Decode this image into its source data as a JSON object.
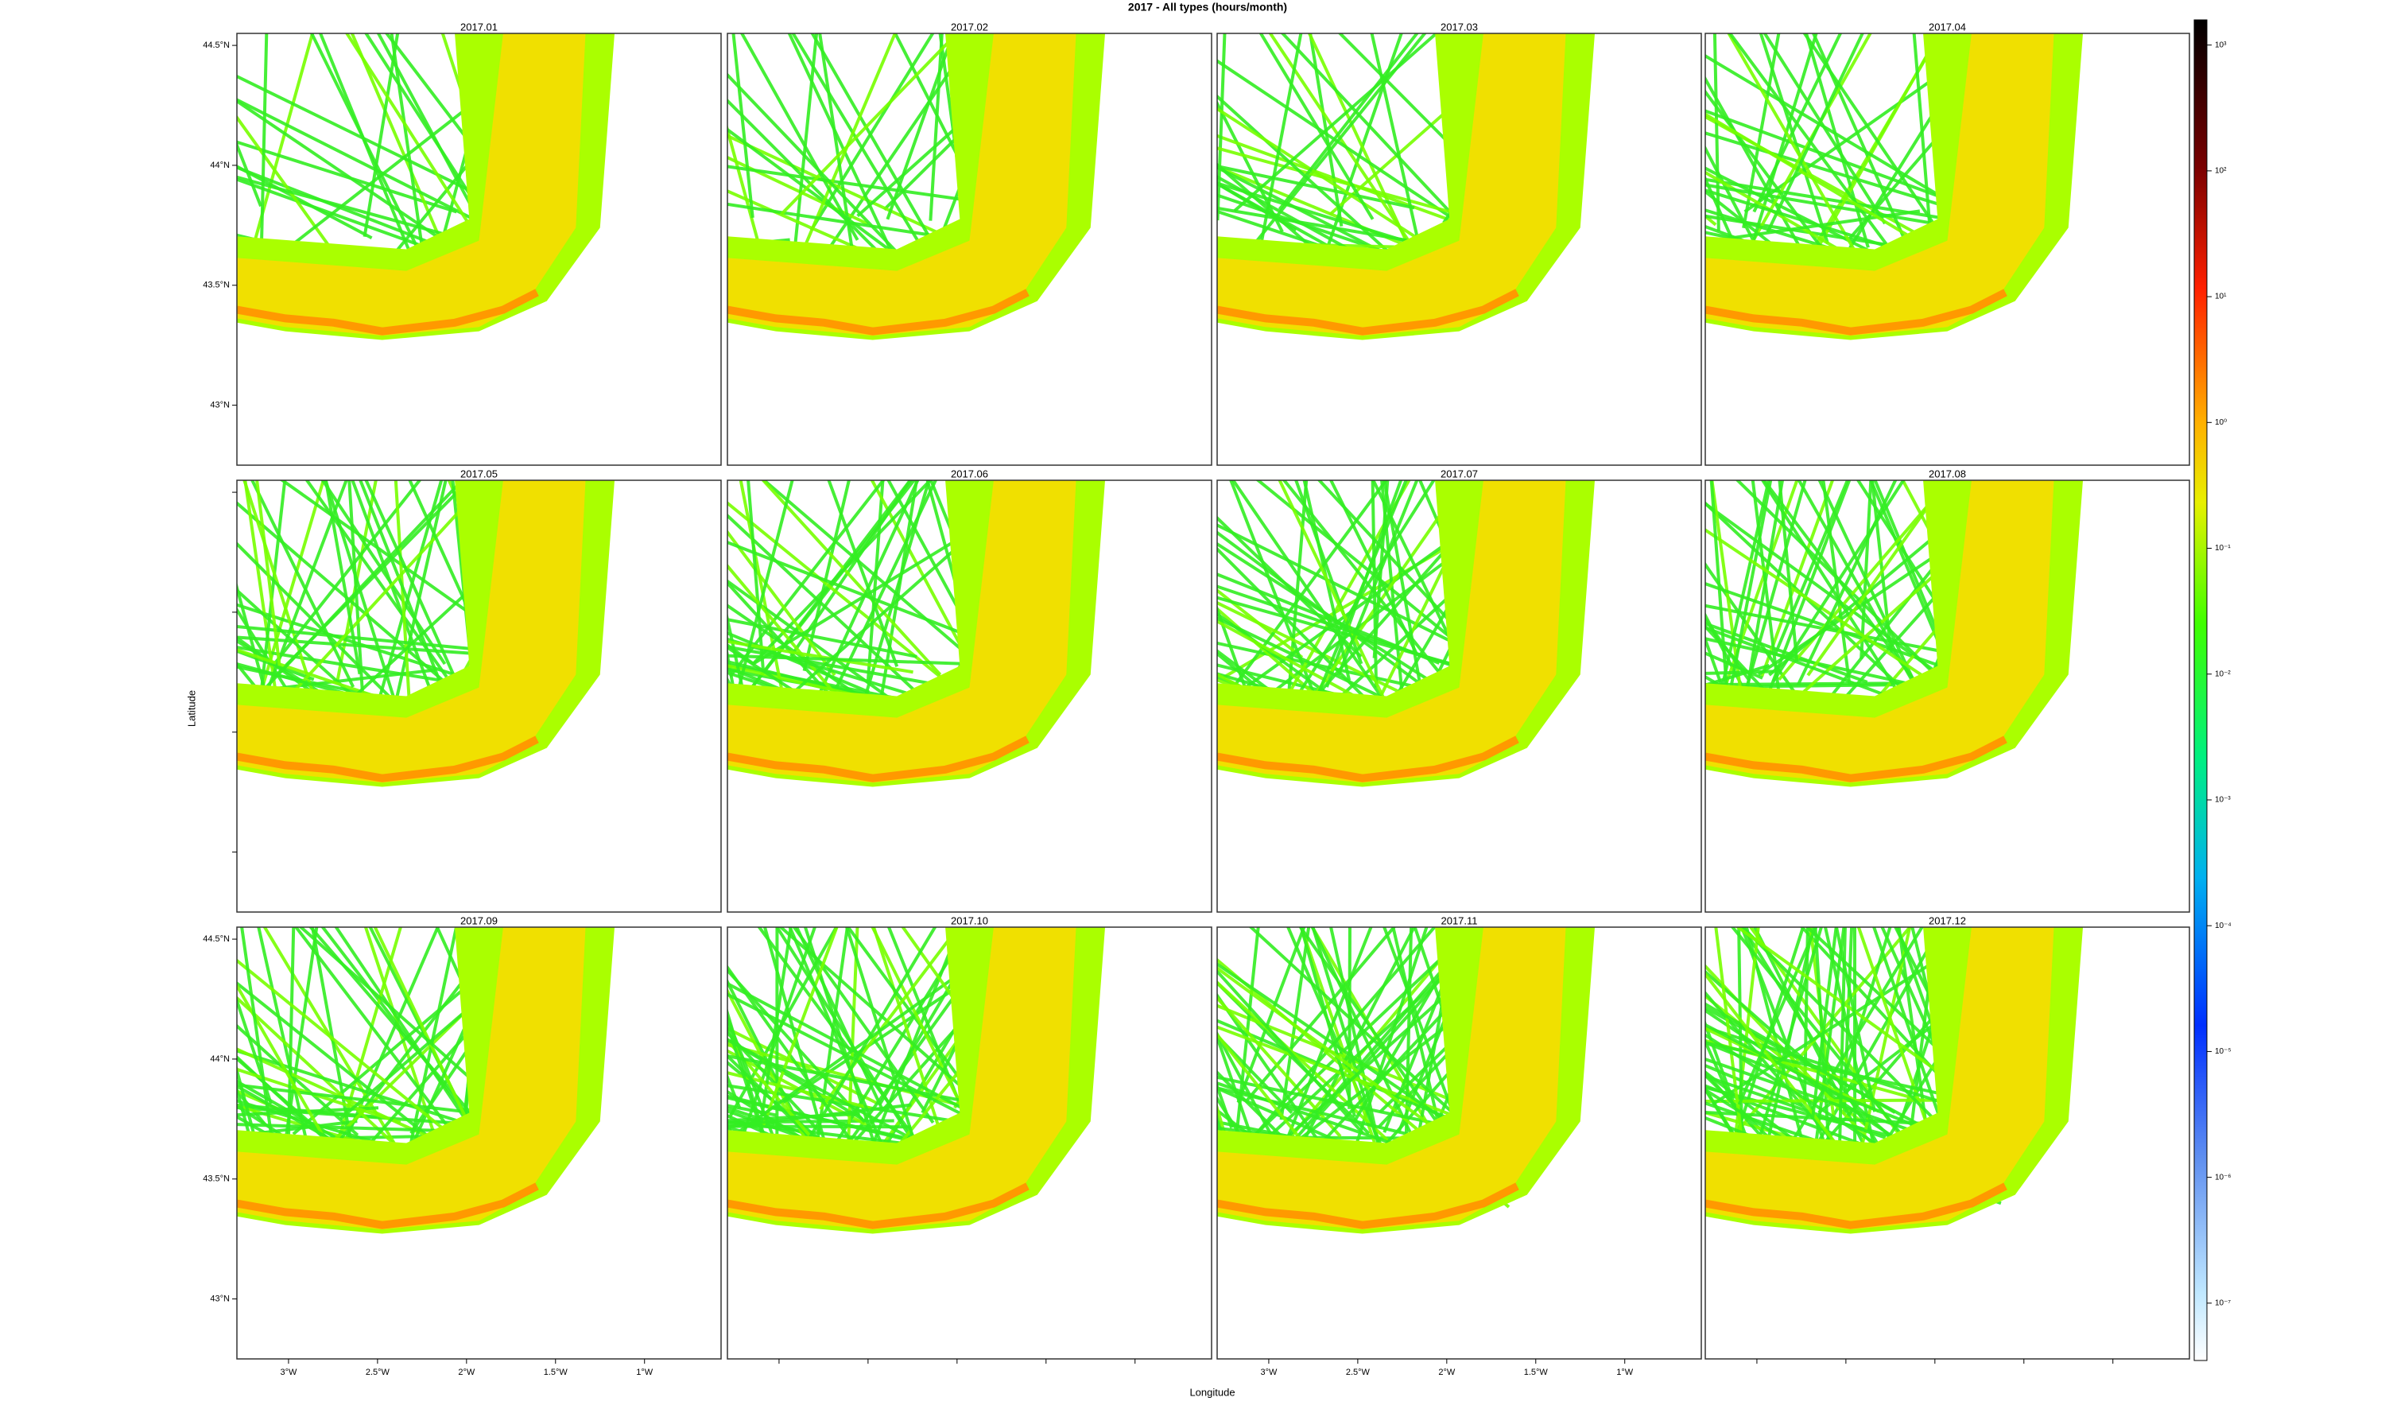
{
  "chart_data": {
    "type": "heatmap",
    "title": "2017 - All types (hours/month)",
    "panels": [
      "2017.01",
      "2017.02",
      "2017.03",
      "2017.04",
      "2017.05",
      "2017.06",
      "2017.07",
      "2017.08",
      "2017.09",
      "2017.10",
      "2017.11",
      "2017.12"
    ],
    "xlabel": "Longitude",
    "ylabel": "Latitude",
    "xlim": [
      -3.29,
      -0.57
    ],
    "ylim": [
      42.75,
      44.55
    ],
    "xticks": [
      {
        "value": -3,
        "label": "3°W"
      },
      {
        "value": -2.5,
        "label": "2.5°W"
      },
      {
        "value": -2,
        "label": "2°W"
      },
      {
        "value": -1.5,
        "label": "1.5°W"
      },
      {
        "value": -1,
        "label": "1°W"
      }
    ],
    "yticks": [
      {
        "value": 44.5,
        "label": "44.5°N"
      },
      {
        "value": 44,
        "label": "44°N"
      },
      {
        "value": 43.5,
        "label": "43.5°N"
      },
      {
        "value": 43,
        "label": "43°N"
      }
    ],
    "colorbar": {
      "log": true,
      "lim": [
        3.5e-08,
        1585
      ],
      "ticks": [
        {
          "value": 1000,
          "label": "10³"
        },
        {
          "value": 100,
          "label": "10²"
        },
        {
          "value": 10,
          "label": "10¹"
        },
        {
          "value": 1,
          "label": "10⁰"
        },
        {
          "value": 0.1,
          "label": "10⁻¹"
        },
        {
          "value": 0.01,
          "label": "10⁻²"
        },
        {
          "value": 0.001,
          "label": "10⁻³"
        },
        {
          "value": 0.0001,
          "label": "10⁻⁴"
        },
        {
          "value": 1e-05,
          "label": "10⁻⁵"
        },
        {
          "value": 1e-06,
          "label": "10⁻⁶"
        },
        {
          "value": 1e-07,
          "label": "10⁻⁷"
        }
      ]
    }
  }
}
